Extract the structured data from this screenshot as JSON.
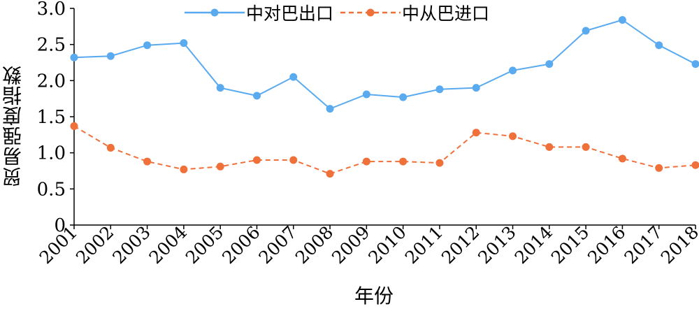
{
  "chart_data": {
    "type": "line",
    "title": "",
    "xlabel": "年份",
    "ylabel": "贸易强度指数",
    "ylim": [
      0,
      3.0
    ],
    "yticks": [
      "0",
      "0.5",
      "1.0",
      "1.5",
      "2.0",
      "2.5",
      "3.0"
    ],
    "categories": [
      "2001",
      "2002",
      "2003",
      "2004",
      "2005",
      "2006",
      "2007",
      "2008",
      "2009",
      "2010",
      "2011",
      "2012",
      "2013",
      "2014",
      "2015",
      "2016",
      "2017",
      "2018"
    ],
    "legend_position": "top-center",
    "series": [
      {
        "name": "中对巴出口",
        "color": "#5aaaf0",
        "style": "solid",
        "values": [
          2.32,
          2.34,
          2.49,
          2.52,
          1.9,
          1.79,
          2.05,
          1.61,
          1.81,
          1.77,
          1.88,
          1.9,
          2.14,
          2.23,
          2.69,
          2.84,
          2.49,
          2.23
        ]
      },
      {
        "name": "中从巴进口",
        "color": "#f0703a",
        "style": "dashed",
        "values": [
          1.37,
          1.07,
          0.88,
          0.77,
          0.81,
          0.9,
          0.9,
          0.71,
          0.88,
          0.88,
          0.86,
          1.28,
          1.23,
          1.08,
          1.08,
          0.92,
          0.79,
          0.83
        ]
      }
    ]
  }
}
